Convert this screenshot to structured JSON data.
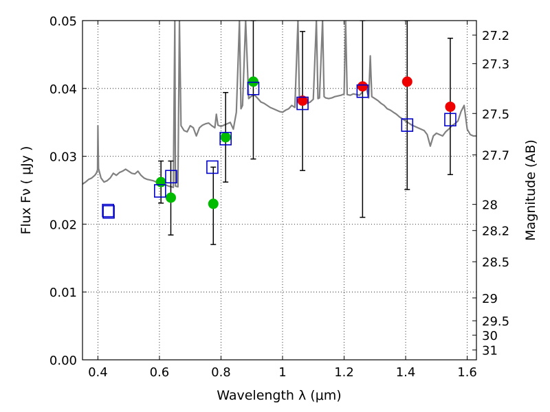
{
  "chart_data": {
    "type": "scatter",
    "xlabel": "Wavelength  λ (μm)",
    "ylabel": "Flux  Fν  ( μJy )",
    "y2label": "Magnitude (AB)",
    "xlim": [
      0.35,
      1.63
    ],
    "ylim": [
      0.0,
      0.05
    ],
    "grid": true,
    "colors": {
      "model": "#808080",
      "green": "#00bb00",
      "red": "#ee0000",
      "box": "#0000cc"
    },
    "x_ticks": [
      {
        "value": 0.4,
        "label": "0.4"
      },
      {
        "value": 0.6,
        "label": "0.6"
      },
      {
        "value": 0.8,
        "label": "0.8"
      },
      {
        "value": 1.0,
        "label": "1"
      },
      {
        "value": 1.2,
        "label": "1.2"
      },
      {
        "value": 1.4,
        "label": "1.4"
      },
      {
        "value": 1.6,
        "label": "1.6"
      }
    ],
    "y_ticks": [
      {
        "value": 0.0,
        "label": "0.00"
      },
      {
        "value": 0.01,
        "label": "0.01"
      },
      {
        "value": 0.02,
        "label": "0.02"
      },
      {
        "value": 0.03,
        "label": "0.03"
      },
      {
        "value": 0.04,
        "label": "0.04"
      },
      {
        "value": 0.05,
        "label": "0.05"
      }
    ],
    "magnitude_ticks": [
      {
        "mag": 27.2,
        "label": "27.2"
      },
      {
        "mag": 27.3,
        "label": "27.3"
      },
      {
        "mag": 27.5,
        "label": "27.5"
      },
      {
        "mag": 27.7,
        "label": "27.7"
      },
      {
        "mag": 28,
        "label": "28"
      },
      {
        "mag": 28.2,
        "label": "28.2"
      },
      {
        "mag": 28.5,
        "label": "28.5"
      },
      {
        "mag": 29,
        "label": "29"
      },
      {
        "mag": 29.5,
        "label": "29.5"
      },
      {
        "mag": 30,
        "label": "30"
      },
      {
        "mag": 31,
        "label": "31"
      }
    ],
    "model_spectrum": [
      [
        0.35,
        0.0259
      ],
      [
        0.36,
        0.0262
      ],
      [
        0.37,
        0.0266
      ],
      [
        0.38,
        0.0268
      ],
      [
        0.39,
        0.0272
      ],
      [
        0.395,
        0.0275
      ],
      [
        0.399,
        0.028
      ],
      [
        0.4,
        0.0345
      ],
      [
        0.402,
        0.0282
      ],
      [
        0.41,
        0.0268
      ],
      [
        0.42,
        0.0262
      ],
      [
        0.43,
        0.0264
      ],
      [
        0.44,
        0.0268
      ],
      [
        0.45,
        0.0275
      ],
      [
        0.46,
        0.0272
      ],
      [
        0.47,
        0.0276
      ],
      [
        0.48,
        0.0278
      ],
      [
        0.49,
        0.0281
      ],
      [
        0.5,
        0.0278
      ],
      [
        0.51,
        0.0275
      ],
      [
        0.52,
        0.0274
      ],
      [
        0.53,
        0.0278
      ],
      [
        0.54,
        0.0272
      ],
      [
        0.55,
        0.0268
      ],
      [
        0.56,
        0.0266
      ],
      [
        0.57,
        0.0265
      ],
      [
        0.58,
        0.0264
      ],
      [
        0.59,
        0.0262
      ],
      [
        0.6,
        0.0263
      ],
      [
        0.61,
        0.0264
      ],
      [
        0.62,
        0.0258
      ],
      [
        0.63,
        0.0256
      ],
      [
        0.64,
        0.0255
      ],
      [
        0.645,
        0.0254
      ],
      [
        0.65,
        0.05
      ],
      [
        0.652,
        0.0256
      ],
      [
        0.66,
        0.0255
      ],
      [
        0.665,
        0.05
      ],
      [
        0.67,
        0.0345
      ],
      [
        0.68,
        0.0338
      ],
      [
        0.69,
        0.0336
      ],
      [
        0.7,
        0.0345
      ],
      [
        0.71,
        0.0342
      ],
      [
        0.72,
        0.033
      ],
      [
        0.73,
        0.0342
      ],
      [
        0.74,
        0.0346
      ],
      [
        0.75,
        0.0348
      ],
      [
        0.76,
        0.0349
      ],
      [
        0.77,
        0.0345
      ],
      [
        0.78,
        0.0342
      ],
      [
        0.785,
        0.0362
      ],
      [
        0.79,
        0.0346
      ],
      [
        0.8,
        0.0344
      ],
      [
        0.81,
        0.0346
      ],
      [
        0.82,
        0.0348
      ],
      [
        0.83,
        0.035
      ],
      [
        0.84,
        0.034
      ],
      [
        0.85,
        0.0365
      ],
      [
        0.86,
        0.05
      ],
      [
        0.865,
        0.037
      ],
      [
        0.87,
        0.0375
      ],
      [
        0.88,
        0.05
      ],
      [
        0.89,
        0.0385
      ],
      [
        0.9,
        0.0389
      ],
      [
        0.91,
        0.039
      ],
      [
        0.92,
        0.0385
      ],
      [
        0.93,
        0.038
      ],
      [
        0.94,
        0.0378
      ],
      [
        0.95,
        0.0375
      ],
      [
        0.96,
        0.0372
      ],
      [
        0.97,
        0.037
      ],
      [
        0.98,
        0.0368
      ],
      [
        0.99,
        0.0366
      ],
      [
        1.0,
        0.0365
      ],
      [
        1.01,
        0.0368
      ],
      [
        1.02,
        0.037
      ],
      [
        1.03,
        0.0375
      ],
      [
        1.04,
        0.0372
      ],
      [
        1.05,
        0.05
      ],
      [
        1.055,
        0.0378
      ],
      [
        1.06,
        0.0376
      ],
      [
        1.07,
        0.038
      ],
      [
        1.08,
        0.0378
      ],
      [
        1.09,
        0.038
      ],
      [
        1.1,
        0.0384
      ],
      [
        1.11,
        0.05
      ],
      [
        1.115,
        0.0385
      ],
      [
        1.12,
        0.0386
      ],
      [
        1.13,
        0.05
      ],
      [
        1.135,
        0.0388
      ],
      [
        1.14,
        0.0386
      ],
      [
        1.15,
        0.0385
      ],
      [
        1.16,
        0.0386
      ],
      [
        1.17,
        0.0388
      ],
      [
        1.18,
        0.0389
      ],
      [
        1.19,
        0.039
      ],
      [
        1.2,
        0.0392
      ],
      [
        1.205,
        0.05
      ],
      [
        1.21,
        0.0391
      ],
      [
        1.22,
        0.039
      ],
      [
        1.23,
        0.0392
      ],
      [
        1.24,
        0.0391
      ],
      [
        1.25,
        0.039
      ],
      [
        1.26,
        0.0395
      ],
      [
        1.27,
        0.0406
      ],
      [
        1.28,
        0.0386
      ],
      [
        1.285,
        0.0448
      ],
      [
        1.29,
        0.0388
      ],
      [
        1.3,
        0.0385
      ],
      [
        1.31,
        0.0382
      ],
      [
        1.32,
        0.0378
      ],
      [
        1.33,
        0.0375
      ],
      [
        1.34,
        0.037
      ],
      [
        1.35,
        0.0368
      ],
      [
        1.36,
        0.0365
      ],
      [
        1.37,
        0.0362
      ],
      [
        1.38,
        0.0358
      ],
      [
        1.39,
        0.0355
      ],
      [
        1.4,
        0.0352
      ],
      [
        1.41,
        0.0349
      ],
      [
        1.42,
        0.0346
      ],
      [
        1.43,
        0.0344
      ],
      [
        1.44,
        0.0342
      ],
      [
        1.45,
        0.034
      ],
      [
        1.46,
        0.0338
      ],
      [
        1.47,
        0.0332
      ],
      [
        1.48,
        0.0315
      ],
      [
        1.49,
        0.033
      ],
      [
        1.5,
        0.0334
      ],
      [
        1.51,
        0.0332
      ],
      [
        1.52,
        0.033
      ],
      [
        1.53,
        0.0336
      ],
      [
        1.54,
        0.034
      ],
      [
        1.55,
        0.0345
      ],
      [
        1.56,
        0.0348
      ],
      [
        1.57,
        0.0352
      ],
      [
        1.58,
        0.0366
      ],
      [
        1.59,
        0.0375
      ],
      [
        1.6,
        0.034
      ],
      [
        1.61,
        0.0332
      ],
      [
        1.62,
        0.033
      ],
      [
        1.63,
        0.033
      ]
    ],
    "green_points": [
      {
        "x": 0.605,
        "y": 0.0262,
        "err_low": 0.0231,
        "err_high": 0.0293
      },
      {
        "x": 0.637,
        "y": 0.0239,
        "err_low": 0.0184,
        "err_high": 0.0293
      },
      {
        "x": 0.775,
        "y": 0.023,
        "err_low": 0.017,
        "err_high": 0.0284
      },
      {
        "x": 0.815,
        "y": 0.0328,
        "err_low": 0.0262,
        "err_high": 0.0394
      },
      {
        "x": 0.905,
        "y": 0.041,
        "err_low": 0.0296,
        "err_high": 0.05
      }
    ],
    "red_points": [
      {
        "x": 1.065,
        "y": 0.0382,
        "err_low": 0.0279,
        "err_high": 0.0484
      },
      {
        "x": 1.26,
        "y": 0.0403,
        "err_low": 0.021,
        "err_high": 0.05
      },
      {
        "x": 1.405,
        "y": 0.041,
        "err_low": 0.0251,
        "err_high": 0.05
      },
      {
        "x": 1.545,
        "y": 0.0373,
        "err_low": 0.0273,
        "err_high": 0.0474
      }
    ],
    "model_boxes": [
      {
        "x": 0.433,
        "y": 0.022
      },
      {
        "x": 0.435,
        "y": 0.0218
      },
      {
        "x": 0.602,
        "y": 0.0249
      },
      {
        "x": 0.638,
        "y": 0.027
      },
      {
        "x": 0.772,
        "y": 0.0284
      },
      {
        "x": 0.815,
        "y": 0.0326
      },
      {
        "x": 0.905,
        "y": 0.04
      },
      {
        "x": 1.065,
        "y": 0.0378
      },
      {
        "x": 1.26,
        "y": 0.0396
      },
      {
        "x": 1.405,
        "y": 0.0346
      },
      {
        "x": 1.545,
        "y": 0.0354
      }
    ]
  }
}
